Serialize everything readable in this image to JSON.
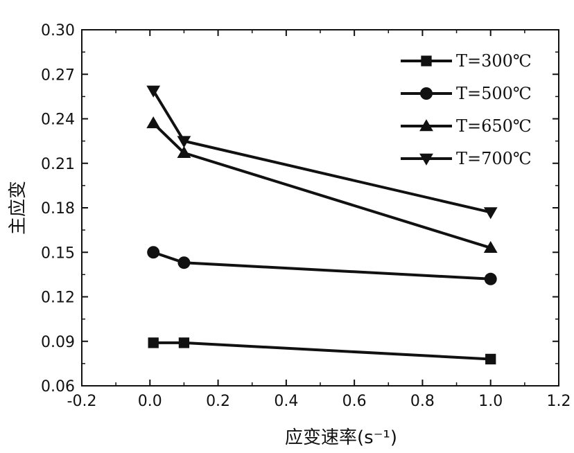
{
  "chart_data": {
    "type": "line",
    "xlabel": "应变速率(s⁻¹)",
    "ylabel": "主应变",
    "xlim": [
      -0.2,
      1.2
    ],
    "ylim": [
      0.06,
      0.3
    ],
    "xticks": [
      "-0.2",
      "0.0",
      "0.2",
      "0.4",
      "0.6",
      "0.8",
      "1.0",
      "1.2"
    ],
    "yticks": [
      "0.06",
      "0.09",
      "0.12",
      "0.15",
      "0.18",
      "0.21",
      "0.24",
      "0.27",
      "0.30"
    ],
    "grid": false,
    "legend_position": "top-right",
    "series": [
      {
        "name": "T=300℃",
        "marker": "square",
        "x": [
          0.01,
          0.1,
          1.0
        ],
        "y": [
          0.089,
          0.089,
          0.078
        ]
      },
      {
        "name": "T=500℃",
        "marker": "circle",
        "x": [
          0.01,
          0.1,
          1.0
        ],
        "y": [
          0.15,
          0.143,
          0.132
        ]
      },
      {
        "name": "T=650℃",
        "marker": "triangle-up",
        "x": [
          0.01,
          0.1,
          1.0
        ],
        "y": [
          0.237,
          0.217,
          0.153
        ]
      },
      {
        "name": "T=700℃",
        "marker": "triangle-down",
        "x": [
          0.01,
          0.1,
          1.0
        ],
        "y": [
          0.259,
          0.225,
          0.177
        ]
      }
    ]
  }
}
